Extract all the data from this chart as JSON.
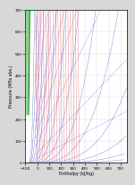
{
  "title": "",
  "xlabel": "Enthalpy (kJ/kg)",
  "ylabel": "Pressure (MPa abs.)",
  "fig_bg": "#d8d8d8",
  "plot_bg": "#ffffff",
  "xlim": [
    -100,
    750
  ],
  "ylim": [
    0,
    700
  ],
  "dome_color": "#007700",
  "dome_lw": 0.7,
  "isotherm_color": "#cc3333",
  "isentrope_color": "#3333cc",
  "quality_color": "#009900",
  "density_color": "#cc33cc",
  "line_lw": 0.25,
  "line_alpha": 0.75,
  "grid_color": "#cccccc",
  "tick_fontsize": 3.0,
  "label_fontsize": 3.5,
  "yticks": [
    0,
    100,
    200,
    300,
    400,
    500,
    600,
    700
  ],
  "xticks": [
    -100,
    0,
    100,
    200,
    300,
    400,
    500,
    600,
    700
  ]
}
